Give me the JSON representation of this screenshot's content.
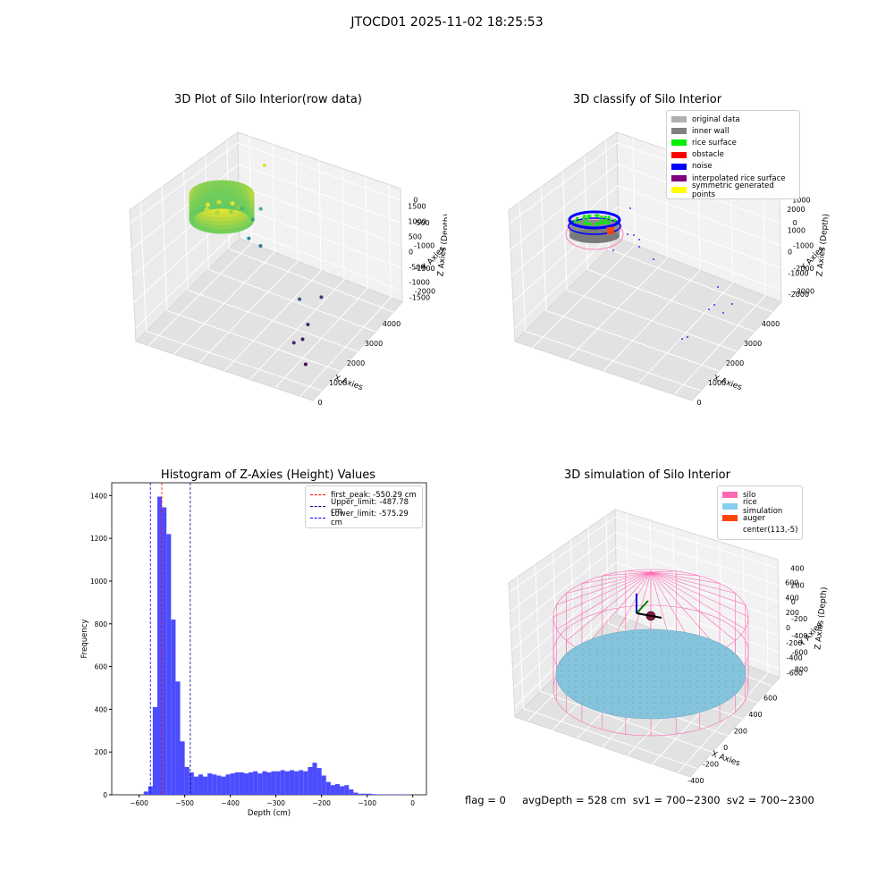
{
  "figure_title": "JTOCD01 2025-11-02 18:25:53",
  "status_text": "flag = 0     avgDepth = 528 cm  sv1 = 700~2300  sv2 = 700~2300",
  "chart_data": [
    {
      "type": "scatter",
      "title": "3D Plot of Silo Interior(row data)",
      "xlabel": "X Axies",
      "ylabel": "Y Axies",
      "zlabel": "Z Axies (Depth)",
      "x_ticks": [
        "0",
        "1000",
        "2000",
        "3000",
        "4000"
      ],
      "y_ticks": [
        "-1500",
        "-1000",
        "-500",
        "0",
        "500",
        "1000",
        "1500"
      ],
      "z_ticks": [
        "-2000",
        "-1500",
        "-1000",
        "-500",
        "0"
      ],
      "grid": true,
      "colormap": "viridis",
      "outlier_points": [
        {
          "x": 900,
          "y": 900,
          "z": 0
        },
        {
          "x": 1000,
          "y": 650,
          "z": -700
        },
        {
          "x": 950,
          "y": 300,
          "z": -1100
        },
        {
          "x": 600,
          "y": 500,
          "z": -700
        },
        {
          "x": 900,
          "y": 500,
          "z": -850
        },
        {
          "x": 1200,
          "y": 400,
          "z": -1250
        },
        {
          "x": 2800,
          "y": -200,
          "z": -1600
        },
        {
          "x": 3000,
          "y": 300,
          "z": -1800
        },
        {
          "x": 3200,
          "y": -400,
          "z": -1900
        },
        {
          "x": 3300,
          "y": -700,
          "z": -2000
        },
        {
          "x": 3300,
          "y": -1000,
          "z": -1900
        },
        {
          "x": 3800,
          "y": -1200,
          "z": -2100
        }
      ]
    },
    {
      "type": "scatter",
      "title": "3D classify of Silo Interior",
      "xlabel": "X Axies",
      "ylabel": "Y Axies",
      "zlabel": "Z Axies (Depth)",
      "x_ticks": [
        "0",
        "1000",
        "2000",
        "3000",
        "4000"
      ],
      "y_ticks": [
        "-2000",
        "-1000",
        "0",
        "1000",
        "2000"
      ],
      "z_ticks": [
        "-3000",
        "-2000",
        "-1000",
        "0",
        "1000"
      ],
      "grid": true,
      "legend_position": "top-right",
      "legend": [
        {
          "label": "original data",
          "color": "#b0b0b0"
        },
        {
          "label": "inner wall",
          "color": "#808080"
        },
        {
          "label": "rice surface",
          "color": "#00ee00"
        },
        {
          "label": "obstacle",
          "color": "#ff0000"
        },
        {
          "label": "noise",
          "color": "#0000ff"
        },
        {
          "label": "interpolated rice surface",
          "color": "#800080"
        },
        {
          "label": "symmetric generated points",
          "color": "#ffff00"
        }
      ]
    },
    {
      "type": "bar",
      "title": "Histogram of Z-Axies (Height) Values",
      "xlabel": "Depth (cm)",
      "ylabel": "Frequency",
      "xlim": [
        -660,
        30
      ],
      "ylim": [
        0,
        1460
      ],
      "bin_width": 10,
      "bin_starts": [
        -590,
        -580,
        -570,
        -560,
        -550,
        -540,
        -530,
        -520,
        -510,
        -500,
        -490,
        -480,
        -470,
        -460,
        -450,
        -440,
        -430,
        -420,
        -410,
        -400,
        -390,
        -380,
        -370,
        -360,
        -350,
        -340,
        -330,
        -320,
        -310,
        -300,
        -290,
        -280,
        -270,
        -260,
        -250,
        -240,
        -230,
        -220,
        -210,
        -200,
        -190,
        -180,
        -170,
        -160,
        -150,
        -140,
        -130,
        -120,
        -110,
        -100,
        -90,
        -80,
        -70,
        -60,
        -50,
        -40,
        -30,
        -20,
        -10
      ],
      "values": [
        15,
        40,
        410,
        1395,
        1345,
        1220,
        820,
        530,
        250,
        130,
        105,
        85,
        95,
        85,
        100,
        95,
        90,
        85,
        95,
        100,
        105,
        105,
        100,
        105,
        110,
        100,
        110,
        105,
        110,
        110,
        115,
        110,
        115,
        110,
        115,
        110,
        130,
        150,
        125,
        90,
        60,
        45,
        50,
        40,
        45,
        25,
        10,
        5,
        5,
        5,
        3,
        2,
        2,
        2,
        2,
        2,
        2,
        2,
        1
      ],
      "x_ticks": [
        -600,
        -500,
        -400,
        -300,
        -200,
        -100,
        0
      ],
      "y_ticks": [
        0,
        200,
        400,
        600,
        800,
        1000,
        1200,
        1400
      ],
      "bar_color": "#4c4cff",
      "reference_lines": [
        {
          "label": "first_peak: -550.29 cm",
          "x": -550.29,
          "color": "#ff0000"
        },
        {
          "label": "Upper_limit: -487.78 cm",
          "x": -487.78,
          "color": "#00008b"
        },
        {
          "label": "Lower_limit: -575.29 cm",
          "x": -575.29,
          "color": "#0000ff"
        }
      ],
      "legend_position": "top-right"
    },
    {
      "type": "scatter",
      "title": "3D simulation of Silo Interior",
      "xlabel": "X Axies",
      "ylabel": "Y Axies",
      "zlabel": "Z Axies (Depth)",
      "x_ticks": [
        "-400",
        "-200",
        "0",
        "200",
        "400",
        "600"
      ],
      "y_ticks": [
        "-600",
        "-400",
        "-200",
        "0",
        "200",
        "400",
        "600"
      ],
      "z_ticks": [
        "-800",
        "-600",
        "-400",
        "-200",
        "0",
        "200",
        "400"
      ],
      "grid": true,
      "legend_position": "top-right",
      "legend": [
        {
          "label": "silo",
          "color": "#ff69b4"
        },
        {
          "label": "rice simulation",
          "color": "#87ceeb"
        },
        {
          "label": "auger",
          "color": "#ff4500"
        },
        {
          "label": "center(113,-5)",
          "color": ""
        }
      ],
      "silo_radius": 620,
      "rice_depth": -528,
      "center": [
        113,
        -5
      ]
    }
  ]
}
